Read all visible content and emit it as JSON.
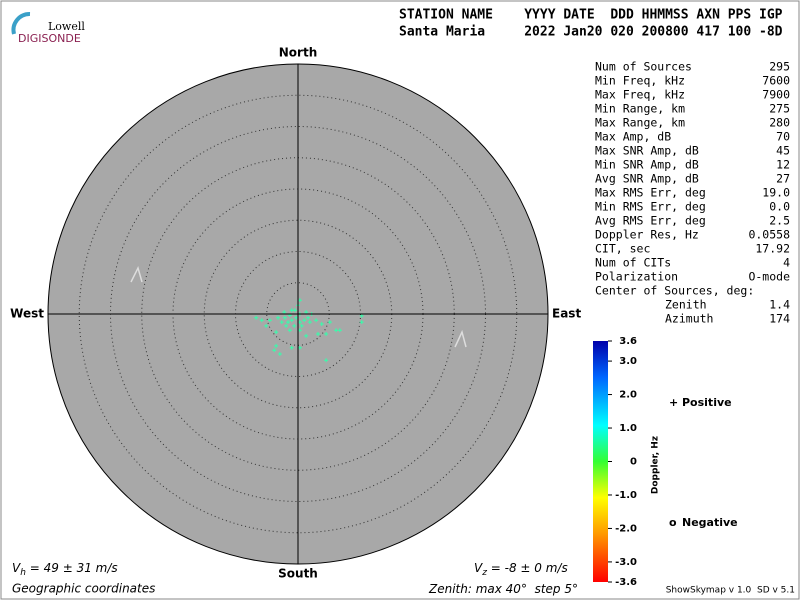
{
  "logo": {
    "top": "Lowell",
    "bottom": "DIGISONDE"
  },
  "header": {
    "names": "STATION NAME    YYYY DATE  DDD HHMMSS AXN PPS IGP",
    "values": "Santa Maria     2022 Jan20 020 200800 417 100 -8D"
  },
  "stats": {
    "rows": [
      [
        "Num of Sources",
        "295"
      ],
      [
        "Min Freq, kHz",
        "7600"
      ],
      [
        "Max Freq, kHz",
        "7900"
      ],
      [
        "Min Range, km",
        "275"
      ],
      [
        "Max Range, km",
        "280"
      ],
      [
        "Max Amp, dB",
        "70"
      ],
      [
        "Max SNR Amp, dB",
        "45"
      ],
      [
        "Min SNR Amp, dB",
        "12"
      ],
      [
        "Avg SNR Amp, dB",
        "27"
      ],
      [
        "Max RMS Err, deg",
        "19.0"
      ],
      [
        "Min RMS Err, deg",
        "0.0"
      ],
      [
        "Avg RMS Err, deg",
        "2.5"
      ],
      [
        "Doppler Res, Hz",
        "0.0558"
      ],
      [
        "CIT, sec",
        "17.92"
      ],
      [
        "Num of CITs",
        "4"
      ],
      [
        "Polarization",
        "O-mode"
      ]
    ],
    "center_title": "Center of Sources, deg:",
    "center_rows": [
      [
        "Zenith",
        "1.4"
      ],
      [
        "Azimuth",
        "174"
      ]
    ]
  },
  "chart_data": {
    "type": "skymap",
    "directions": {
      "north": "North",
      "south": "South",
      "east": "East",
      "west": "West"
    },
    "xlim": [
      -40,
      40
    ],
    "ylim": [
      -40,
      40
    ],
    "color": "#33ffaa",
    "x": [
      0.3,
      0,
      -0.5,
      -1.3,
      -2.1,
      -1.6,
      -1.0,
      -0.3,
      0.3,
      1.0,
      1.6,
      0.6,
      -0.6,
      -1.9,
      -2.6,
      -3.2,
      -4.5,
      -5.8,
      -6.7,
      -5.1,
      -3.5,
      -1.3,
      0.3,
      1.9,
      2.9,
      3.8,
      5.1,
      6.1,
      6.7,
      10.2,
      10.2,
      3.2,
      4.5,
      1.3,
      0.3,
      -1.0,
      -3.5,
      -3.8,
      -2.9,
      4.5,
      -2.2,
      -1.0,
      0.3,
      2.2,
      1.3
    ],
    "y": [
      2.2,
      1.4,
      0.6,
      -0.2,
      -0.6,
      -1.3,
      -1.0,
      -0.6,
      -1.3,
      -1.0,
      -0.6,
      -1.9,
      -1.9,
      -1.9,
      -1.3,
      -0.6,
      -1.0,
      -1.0,
      -0.6,
      -1.9,
      -2.9,
      -2.6,
      -2.6,
      -1.3,
      -1.0,
      -1.6,
      -1.3,
      -2.6,
      -2.6,
      -1.3,
      -0.3,
      -3.2,
      -3.2,
      -3.5,
      -5.4,
      -5.4,
      -5.1,
      -5.8,
      -6.4,
      -7.4,
      0.3,
      0.6,
      0,
      0,
      0.3
    ],
    "vh": {
      "symbol": "V",
      "sub": "h",
      "text": " = 49 ± 31 m/s"
    },
    "vz": {
      "symbol": "V",
      "sub": "z",
      "text": " = -8 ± 0 m/s"
    },
    "coords": "Geographic coordinates",
    "zenith": {
      "prefix": "Zenith: max ",
      "max": 40,
      "mid": "°  step ",
      "step": 5,
      "suffix": "°"
    },
    "colorbar": {
      "label": "Doppler, Hz",
      "lim": [
        -3.6,
        3.6
      ],
      "ticks": [
        3.6,
        {
          "value": 3,
          "label": "3.0"
        },
        {
          "value": 2,
          "label": "2.0"
        },
        {
          "value": 1,
          "label": "1.0"
        },
        0,
        {
          "value": -1,
          "label": "-1.0"
        },
        {
          "value": -2,
          "label": "-2.0"
        },
        {
          "value": -3,
          "label": "-3.0"
        },
        -3.6
      ]
    },
    "legend": [
      {
        "symbol": "+",
        "label": "Positive",
        "color": "#0000cc"
      },
      {
        "symbol": "o",
        "label": "Negative",
        "color": "#cc0000"
      }
    ]
  },
  "footer": "ShowSkymap v 1.0  SD v 5.1"
}
